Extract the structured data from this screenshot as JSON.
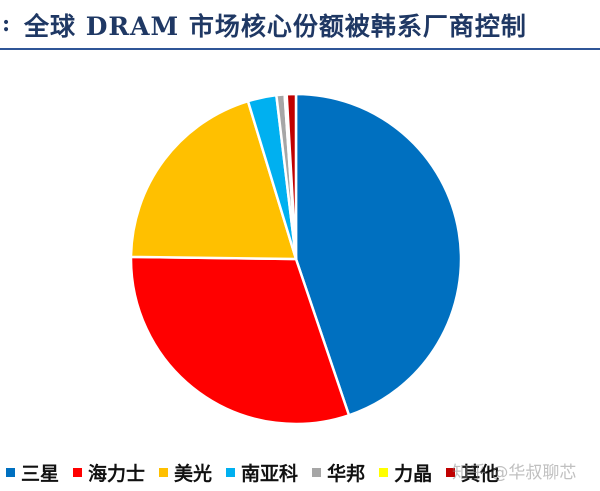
{
  "header": {
    "marker": ":",
    "title": "全球 DRAM 市场核心份额被韩系厂商控制"
  },
  "chart_data": {
    "type": "pie",
    "title": "全球 DRAM 市场核心份额被韩系厂商控制",
    "start_angle_deg": 0,
    "direction": "clockwise",
    "slices": [
      {
        "label": "三星",
        "value": 44.8,
        "color": "#0070c0"
      },
      {
        "label": "海力士",
        "value": 30.4,
        "color": "#ff0000"
      },
      {
        "label": "美光",
        "value": 20.1,
        "color": "#ffc000"
      },
      {
        "label": "南亚科",
        "value": 2.8,
        "color": "#00b0f0"
      },
      {
        "label": "华邦",
        "value": 0.8,
        "color": "#a6a6a6"
      },
      {
        "label": "力晶",
        "value": 0.2,
        "color": "#ffff00"
      },
      {
        "label": "其他",
        "value": 0.9,
        "color": "#c00000"
      }
    ],
    "legend_position": "bottom"
  },
  "watermark": "知乎 @华叔聊芯"
}
